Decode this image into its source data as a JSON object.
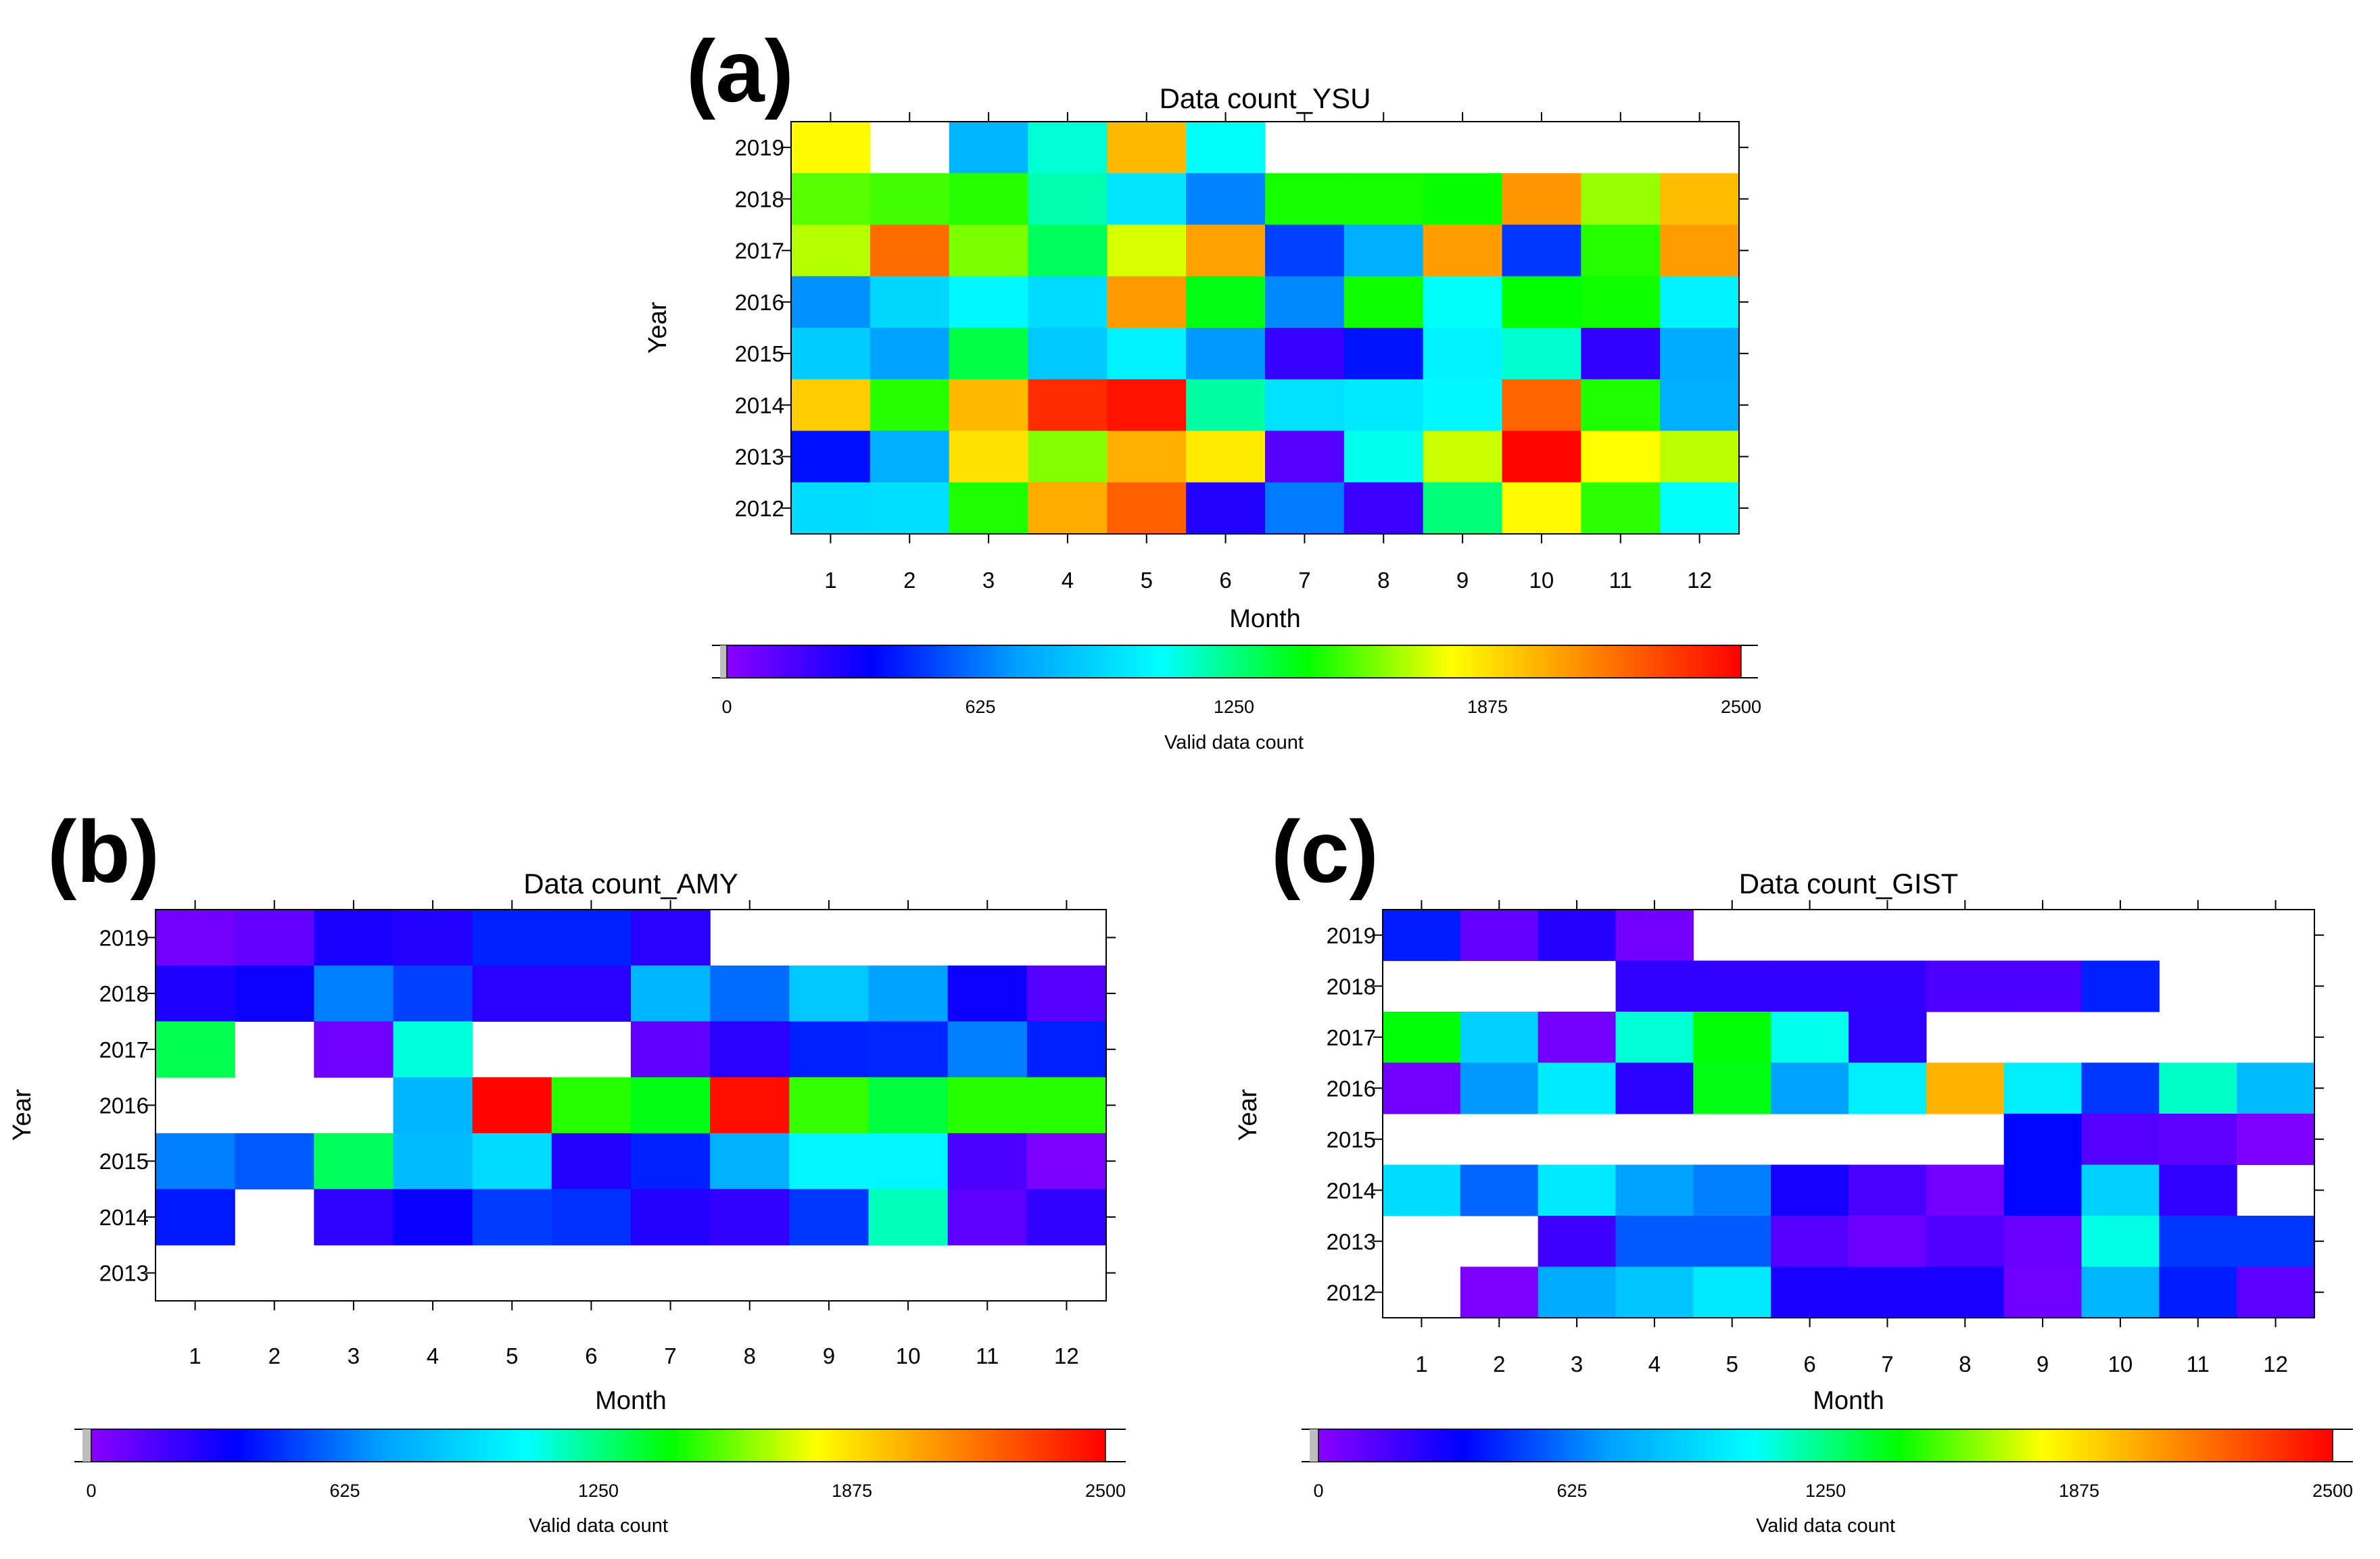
{
  "chart_data": [
    {
      "type": "heatmap",
      "panel_label": "(a)",
      "title": "Data count_YSU",
      "xlabel": "Month",
      "ylabel": "Year",
      "x_categories": [
        "1",
        "2",
        "3",
        "4",
        "5",
        "6",
        "7",
        "8",
        "9",
        "10",
        "11",
        "12"
      ],
      "y_categories": [
        "2019",
        "2018",
        "2017",
        "2016",
        "2015",
        "2014",
        "2013",
        "2012"
      ],
      "values": [
        [
          1800,
          null,
          800,
          1130,
          1980,
          1080,
          null,
          null,
          null,
          null,
          null,
          null
        ],
        [
          1550,
          1520,
          1480,
          1180,
          970,
          650,
          1460,
          1460,
          1440,
          2080,
          1640,
          1970
        ],
        [
          1680,
          2200,
          1600,
          1300,
          1730,
          2050,
          500,
          770,
          2060,
          480,
          1480,
          2060
        ],
        [
          680,
          920,
          1050,
          940,
          2070,
          1400,
          660,
          1450,
          1080,
          1430,
          1450,
          1020
        ],
        [
          880,
          730,
          1330,
          870,
          1020,
          700,
          220,
          400,
          1030,
          1140,
          230,
          760
        ],
        [
          1930,
          1480,
          1980,
          2380,
          2450,
          1200,
          960,
          990,
          1050,
          2220,
          1470,
          770
        ],
        [
          390,
          770,
          1870,
          1610,
          2010,
          1840,
          140,
          1100,
          1710,
          2480,
          1790,
          1690
        ],
        [
          940,
          950,
          1470,
          2020,
          2230,
          270,
          630,
          200,
          1260,
          1800,
          1490,
          1080
        ]
      ],
      "colorbar": {
        "label": "Valid data count",
        "min": 0,
        "max": 2500,
        "ticks": [
          "0",
          "625",
          "1250",
          "1875",
          "2500"
        ],
        "colors": [
          "#8a00ff",
          "#0000ff",
          "#00a0ff",
          "#00ffff",
          "#00ff00",
          "#ffff00",
          "#ff8000",
          "#ff0000"
        ]
      }
    },
    {
      "type": "heatmap",
      "panel_label": "(b)",
      "title": "Data count_AMY",
      "xlabel": "Month",
      "ylabel": "Year",
      "x_categories": [
        "1",
        "2",
        "3",
        "4",
        "5",
        "6",
        "7",
        "8",
        "9",
        "10",
        "11",
        "12"
      ],
      "y_categories": [
        "2019",
        "2018",
        "2017",
        "2016",
        "2015",
        "2014",
        "2013"
      ],
      "values": [
        [
          60,
          100,
          290,
          270,
          430,
          430,
          250,
          null,
          null,
          null,
          null,
          null
        ],
        [
          280,
          320,
          640,
          500,
          250,
          250,
          800,
          600,
          860,
          720,
          320,
          140
        ],
        [
          1320,
          null,
          70,
          1120,
          null,
          null,
          110,
          250,
          430,
          440,
          640,
          430
        ],
        [
          null,
          null,
          null,
          800,
          2490,
          1480,
          1400,
          2460,
          1500,
          1340,
          1480,
          1480
        ],
        [
          640,
          560,
          1300,
          820,
          940,
          270,
          430,
          780,
          1040,
          1040,
          160,
          40
        ],
        [
          410,
          null,
          240,
          330,
          490,
          460,
          270,
          230,
          480,
          1170,
          120,
          230
        ],
        [
          null,
          null,
          null,
          null,
          null,
          null,
          null,
          null,
          null,
          null,
          null,
          null
        ]
      ],
      "colorbar": {
        "label": "Valid data count",
        "min": 0,
        "max": 2500,
        "ticks": [
          "0",
          "625",
          "1250",
          "1875",
          "2500"
        ],
        "colors": [
          "#8a00ff",
          "#0000ff",
          "#00a0ff",
          "#00ffff",
          "#00ff00",
          "#ffff00",
          "#ff8000",
          "#ff0000"
        ]
      }
    },
    {
      "type": "heatmap",
      "panel_label": "(c)",
      "title": "Data count_GIST",
      "xlabel": "Month",
      "ylabel": "Year",
      "x_categories": [
        "1",
        "2",
        "3",
        "4",
        "5",
        "6",
        "7",
        "8",
        "9",
        "10",
        "11",
        "12"
      ],
      "y_categories": [
        "2019",
        "2018",
        "2017",
        "2016",
        "2015",
        "2014",
        "2013",
        "2012"
      ],
      "values": [
        [
          420,
          100,
          260,
          60,
          null,
          null,
          null,
          null,
          null,
          null,
          null,
          null
        ],
        [
          null,
          null,
          null,
          230,
          230,
          230,
          230,
          160,
          160,
          430,
          null,
          null
        ],
        [
          1420,
          900,
          60,
          1130,
          1420,
          1100,
          240,
          null,
          null,
          null,
          null,
          null
        ],
        [
          60,
          700,
          1000,
          250,
          1400,
          720,
          1010,
          2000,
          1010,
          480,
          1150,
          820
        ],
        [
          null,
          null,
          null,
          null,
          null,
          null,
          null,
          null,
          370,
          140,
          120,
          30
        ],
        [
          940,
          580,
          990,
          720,
          640,
          300,
          170,
          60,
          370,
          900,
          230,
          null
        ],
        [
          null,
          null,
          200,
          560,
          560,
          140,
          80,
          150,
          90,
          1110,
          480,
          480
        ],
        [
          null,
          40,
          750,
          850,
          990,
          290,
          290,
          290,
          70,
          800,
          420,
          120
        ]
      ],
      "colorbar": {
        "label": "Valid data count",
        "min": 0,
        "max": 2500,
        "ticks": [
          "0",
          "625",
          "1250",
          "1875",
          "2500"
        ],
        "colors": [
          "#8a00ff",
          "#0000ff",
          "#00a0ff",
          "#00ffff",
          "#00ff00",
          "#ffff00",
          "#ff8000",
          "#ff0000"
        ]
      }
    }
  ]
}
